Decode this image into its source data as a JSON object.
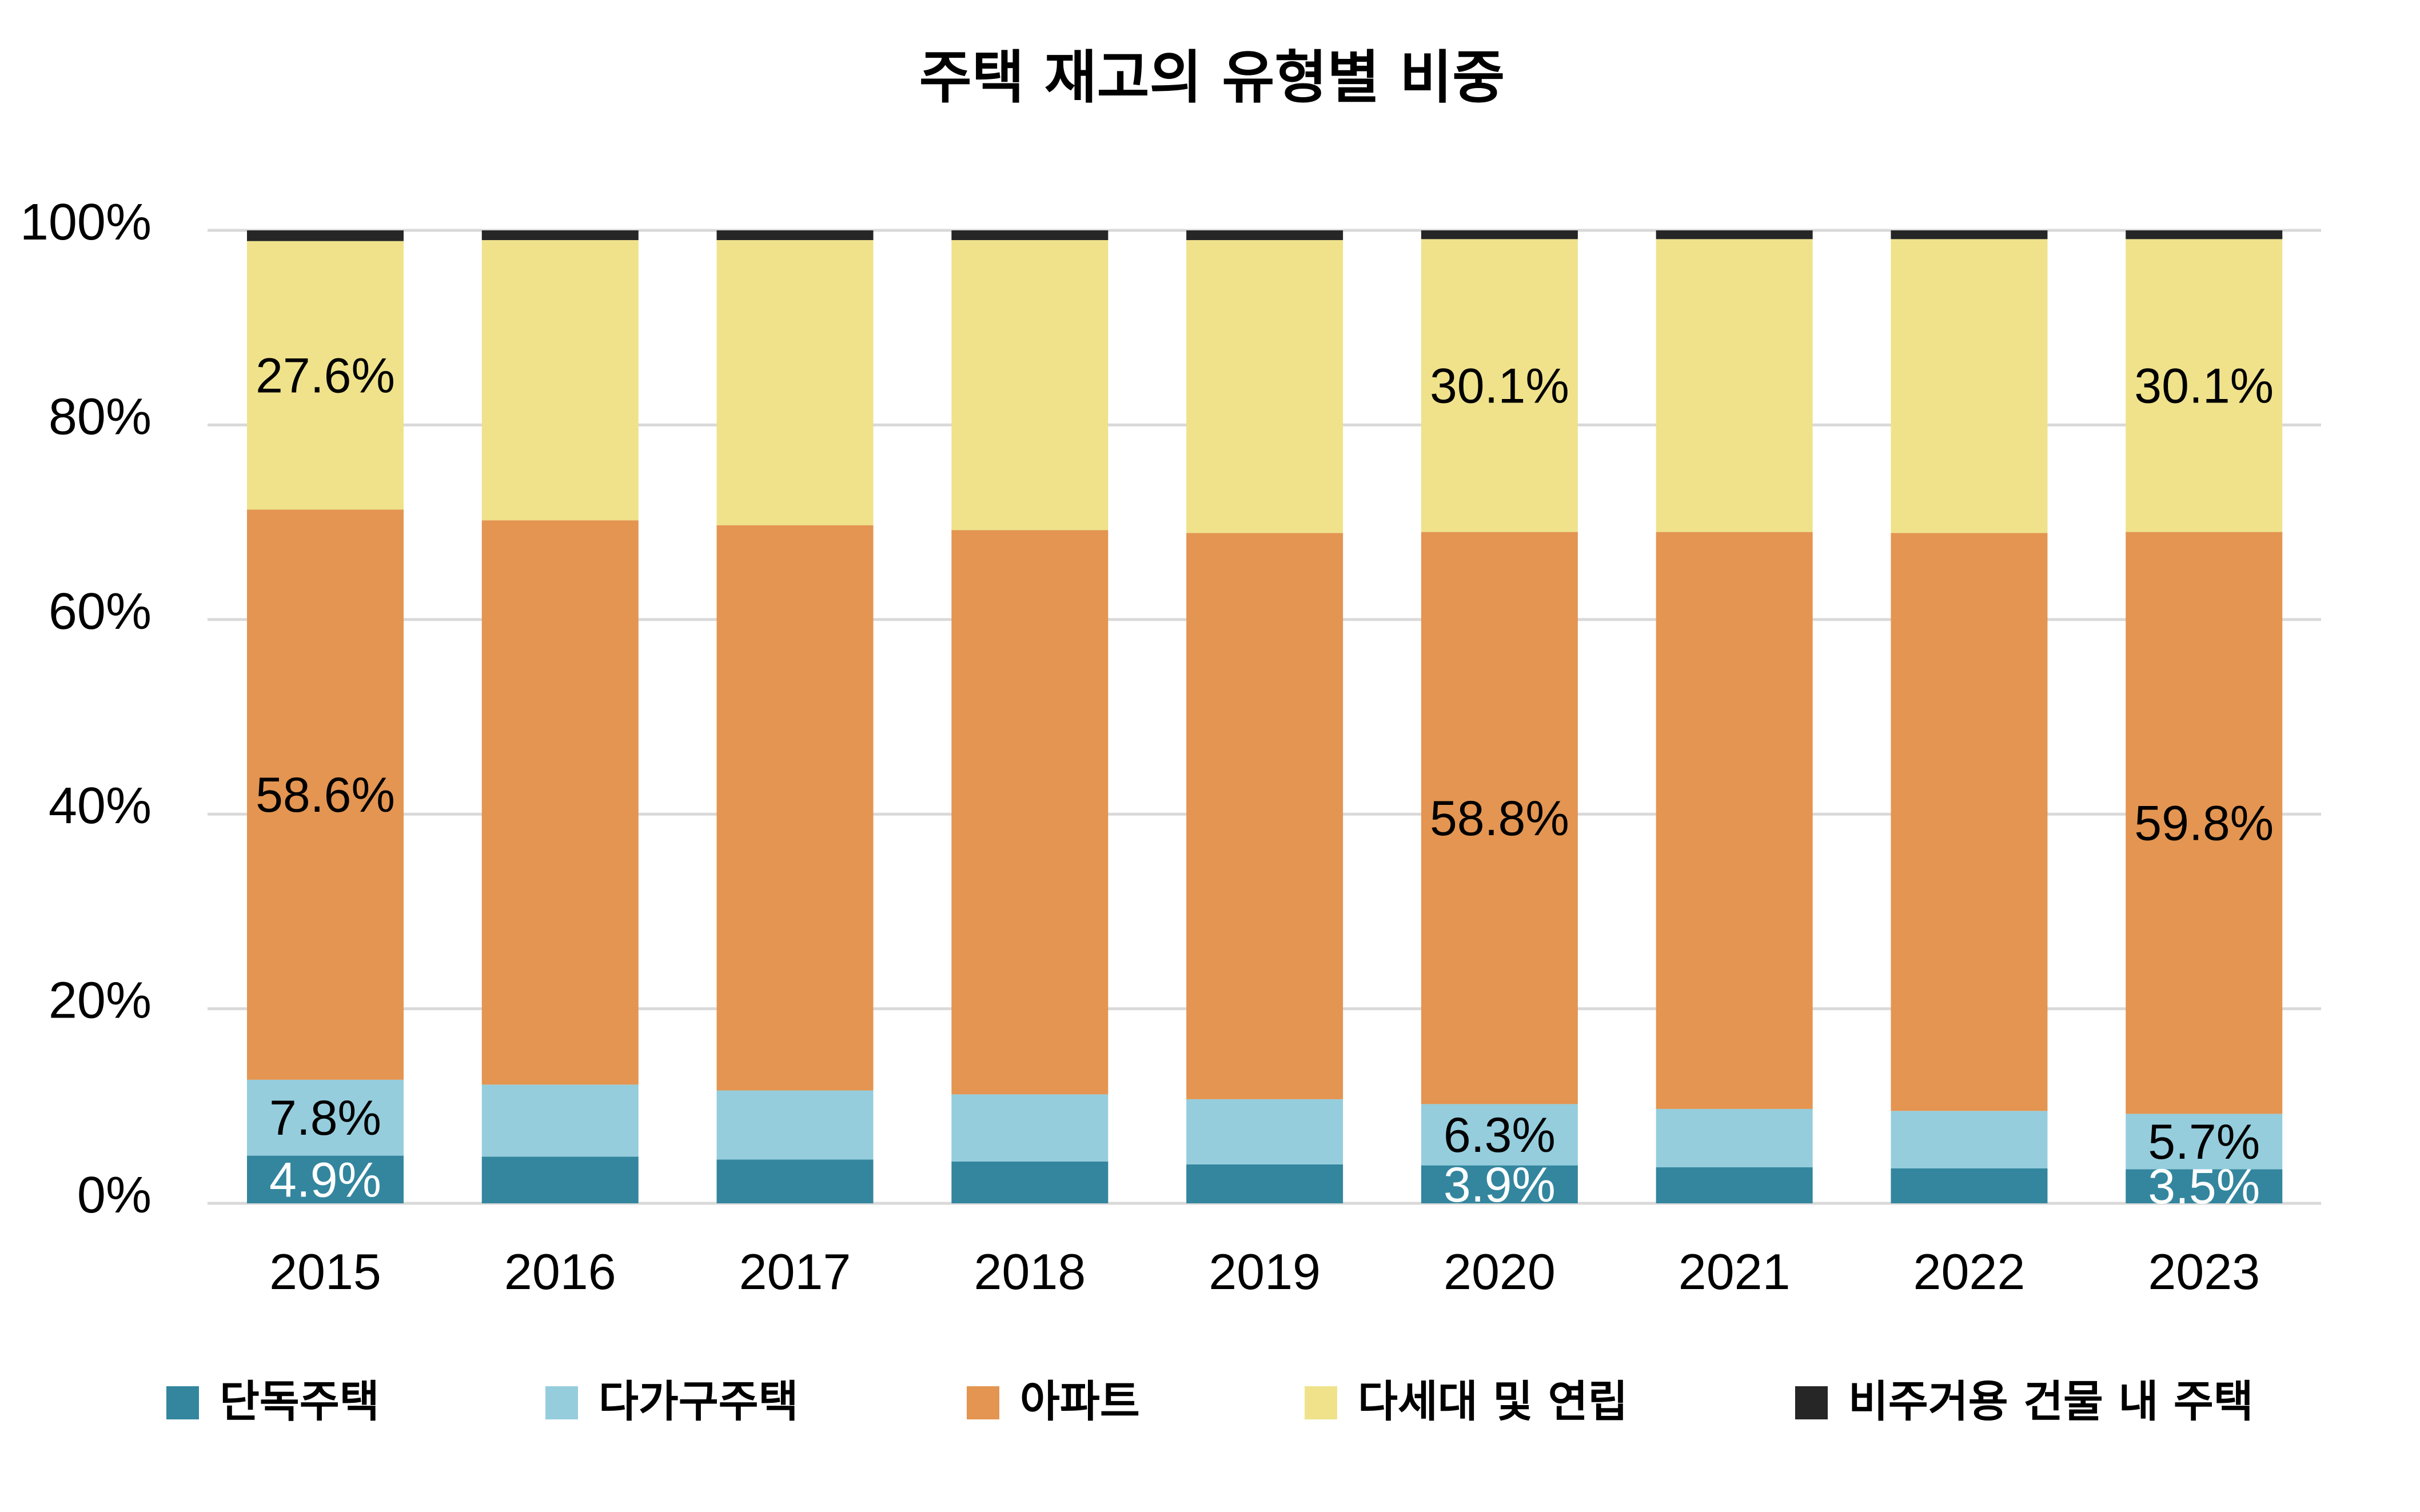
{
  "chart_data": {
    "type": "bar",
    "stacked": true,
    "title": "주택 재고의 유형별 비중",
    "xlabel": "",
    "ylabel": "",
    "ylim": [
      0,
      100
    ],
    "yticks": [
      0,
      20,
      40,
      60,
      80,
      100
    ],
    "ytick_labels": [
      "0%",
      "20%",
      "40%",
      "60%",
      "80%",
      "100%"
    ],
    "grid": true,
    "legend_position": "bottom",
    "categories": [
      "2015",
      "2016",
      "2017",
      "2018",
      "2019",
      "2020",
      "2021",
      "2022",
      "2023"
    ],
    "series": [
      {
        "name": "단독주택",
        "color": "#33869e",
        "label_color": "#ffffff",
        "values": [
          4.9,
          4.8,
          4.5,
          4.3,
          4.0,
          3.9,
          3.7,
          3.6,
          3.5
        ],
        "labels": [
          "4.9%",
          null,
          null,
          null,
          null,
          "3.9%",
          null,
          null,
          "3.5%"
        ]
      },
      {
        "name": "다가구주택",
        "color": "#95cddd",
        "label_color": "#000000",
        "values": [
          7.8,
          7.4,
          7.1,
          6.9,
          6.7,
          6.3,
          6.0,
          5.9,
          5.7
        ],
        "labels": [
          "7.8%",
          null,
          null,
          null,
          null,
          "6.3%",
          null,
          null,
          "5.7%"
        ]
      },
      {
        "name": "아파트",
        "color": "#e39551",
        "label_color": "#000000",
        "values": [
          58.6,
          58.0,
          58.1,
          58.0,
          58.2,
          58.8,
          59.3,
          59.4,
          59.8
        ],
        "labels": [
          "58.6%",
          null,
          null,
          null,
          null,
          "58.8%",
          null,
          null,
          "59.8%"
        ]
      },
      {
        "name": "다세대 및 연립",
        "color": "#efe28b",
        "label_color": "#000000",
        "values": [
          27.6,
          28.8,
          29.3,
          29.8,
          30.1,
          30.1,
          30.1,
          30.2,
          30.1
        ],
        "labels": [
          "27.6%",
          null,
          null,
          null,
          null,
          "30.1%",
          null,
          null,
          "30.1%"
        ]
      },
      {
        "name": "비주거용 건물 내 주택",
        "color": "#262626",
        "label_color": "#ffffff",
        "values": [
          1.1,
          1.0,
          1.0,
          1.0,
          1.0,
          0.9,
          0.9,
          0.9,
          0.9
        ],
        "labels": [
          null,
          null,
          null,
          null,
          null,
          null,
          null,
          null,
          null
        ]
      }
    ]
  }
}
